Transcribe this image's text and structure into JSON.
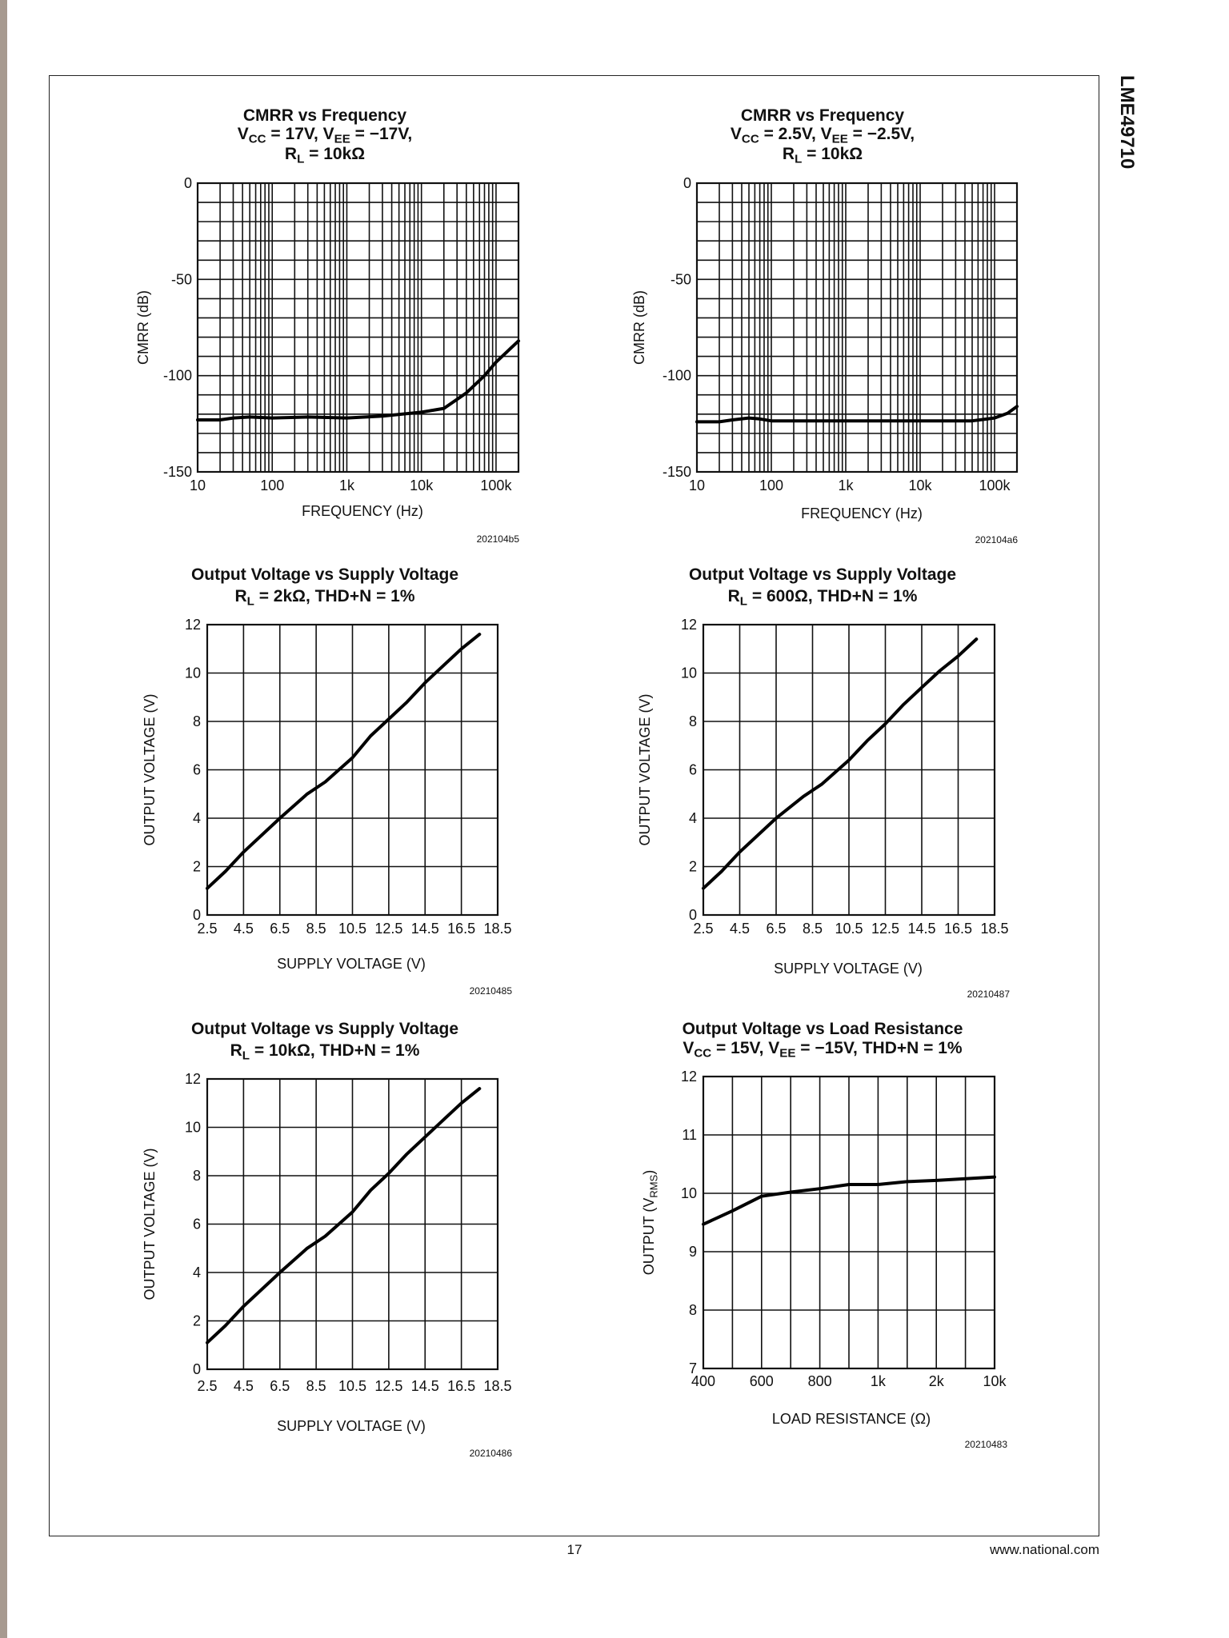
{
  "page": {
    "side_title": "LME49710",
    "page_number": "17",
    "website": "www.national.com"
  },
  "chart_data": [
    {
      "type": "line",
      "title_lines": [
        [
          [
            "CMRR vs Frequency",
            0
          ]
        ],
        [
          [
            "V",
            0
          ],
          [
            "CC",
            1
          ],
          [
            " = 17V, V",
            0
          ],
          [
            "EE",
            1
          ],
          [
            " = −17V,",
            0
          ]
        ],
        [
          [
            "R",
            0
          ],
          [
            "L",
            1
          ],
          [
            " = 10kΩ",
            0
          ]
        ]
      ],
      "xlabel": [
        [
          "FREQUENCY (Hz)",
          0
        ]
      ],
      "ylabel": [
        [
          "CMRR (dB)",
          0
        ]
      ],
      "xscale": "log",
      "xlim": [
        10,
        200000
      ],
      "ylim": [
        -150,
        0
      ],
      "xticks": [
        10,
        100,
        1000,
        10000,
        100000
      ],
      "xtick_labels": [
        "10",
        "100",
        "1k",
        "10k",
        "100k"
      ],
      "yticks": [
        0,
        -50,
        -100,
        -150
      ],
      "ytick_labels": [
        "0",
        "-50",
        "-100",
        "-150"
      ],
      "xgrid": "log-minor",
      "ygrid_step": 10,
      "series": [
        {
          "name": "CMRR",
          "x": [
            10,
            20,
            30,
            50,
            100,
            300,
            1000,
            3000,
            10000,
            20000,
            40000,
            70000,
            100000,
            200000
          ],
          "y": [
            -123,
            -123,
            -122,
            -121.5,
            -122,
            -121.5,
            -122,
            -121,
            -119,
            -117,
            -109,
            -100,
            -93,
            -82
          ]
        }
      ],
      "figure_code": "202104b5"
    },
    {
      "type": "line",
      "title_lines": [
        [
          [
            "CMRR vs Frequency",
            0
          ]
        ],
        [
          [
            "V",
            0
          ],
          [
            "CC",
            1
          ],
          [
            " = 2.5V, V",
            0
          ],
          [
            "EE",
            1
          ],
          [
            " = −2.5V,",
            0
          ]
        ],
        [
          [
            "R",
            0
          ],
          [
            "L",
            1
          ],
          [
            " = 10kΩ",
            0
          ]
        ]
      ],
      "xlabel": [
        [
          "FREQUENCY (Hz)",
          0
        ]
      ],
      "ylabel": [
        [
          "CMRR (dB)",
          0
        ]
      ],
      "xscale": "log",
      "xlim": [
        10,
        200000
      ],
      "ylim": [
        -150,
        0
      ],
      "xticks": [
        10,
        100,
        1000,
        10000,
        100000
      ],
      "xtick_labels": [
        "10",
        "100",
        "1k",
        "10k",
        "100k"
      ],
      "yticks": [
        0,
        -50,
        -100,
        -150
      ],
      "ytick_labels": [
        "0",
        "-50",
        "-100",
        "-150"
      ],
      "xgrid": "log-minor",
      "ygrid_step": 10,
      "series": [
        {
          "name": "CMRR",
          "x": [
            10,
            20,
            30,
            50,
            70,
            100,
            1000,
            10000,
            50000,
            100000,
            150000,
            200000
          ],
          "y": [
            -124,
            -124,
            -123,
            -122,
            -122.5,
            -123.5,
            -123.5,
            -123.5,
            -123.5,
            -122,
            -119.5,
            -116
          ]
        }
      ],
      "figure_code": "202104a6"
    },
    {
      "type": "line",
      "title_lines": [
        [
          [
            "Output Voltage vs Supply Voltage",
            0
          ]
        ],
        [
          [
            "R",
            0
          ],
          [
            "L",
            1
          ],
          [
            " = 2kΩ, THD+N = 1%",
            0
          ]
        ]
      ],
      "xlabel": [
        [
          "SUPPLY VOLTAGE (V)",
          0
        ]
      ],
      "ylabel": [
        [
          "OUTPUT VOLTAGE (V)",
          0
        ]
      ],
      "xscale": "linear",
      "xlim": [
        2.5,
        18.5
      ],
      "ylim": [
        0,
        12
      ],
      "xticks": [
        2.5,
        4.5,
        6.5,
        8.5,
        10.5,
        12.5,
        14.5,
        16.5,
        18.5
      ],
      "xtick_labels": [
        "2.5",
        "4.5",
        "6.5",
        "8.5",
        "10.5",
        "12.5",
        "14.5",
        "16.5",
        "18.5"
      ],
      "yticks": [
        0,
        2,
        4,
        6,
        8,
        10,
        12
      ],
      "ytick_labels": [
        "0",
        "2",
        "4",
        "6",
        "8",
        "10",
        "12"
      ],
      "xgrid_step": 2,
      "ygrid_step": 2,
      "series": [
        {
          "name": "VOUT",
          "x": [
            2.5,
            3.5,
            4.5,
            6.5,
            8,
            9,
            10.5,
            11.5,
            12.5,
            13.5,
            14.5,
            15.5,
            16.5,
            17.5
          ],
          "y": [
            1.1,
            1.8,
            2.6,
            4.0,
            5.0,
            5.5,
            6.5,
            7.4,
            8.1,
            8.8,
            9.6,
            10.3,
            11.0,
            11.6
          ]
        }
      ],
      "figure_code": "20210485"
    },
    {
      "type": "line",
      "title_lines": [
        [
          [
            "Output Voltage vs Supply Voltage",
            0
          ]
        ],
        [
          [
            "R",
            0
          ],
          [
            "L",
            1
          ],
          [
            " = 600Ω, THD+N = 1%",
            0
          ]
        ]
      ],
      "xlabel": [
        [
          "SUPPLY VOLTAGE (V)",
          0
        ]
      ],
      "ylabel": [
        [
          "OUTPUT VOLTAGE (V)",
          0
        ]
      ],
      "xscale": "linear",
      "xlim": [
        2.5,
        18.5
      ],
      "ylim": [
        0,
        12
      ],
      "xticks": [
        2.5,
        4.5,
        6.5,
        8.5,
        10.5,
        12.5,
        14.5,
        16.5,
        18.5
      ],
      "xtick_labels": [
        "2.5",
        "4.5",
        "6.5",
        "8.5",
        "10.5",
        "12.5",
        "14.5",
        "16.5",
        "18.5"
      ],
      "yticks": [
        0,
        2,
        4,
        6,
        8,
        10,
        12
      ],
      "ytick_labels": [
        "0",
        "2",
        "4",
        "6",
        "8",
        "10",
        "12"
      ],
      "xgrid_step": 2,
      "ygrid_step": 2,
      "series": [
        {
          "name": "VOUT",
          "x": [
            2.5,
            3.5,
            4.5,
            6.5,
            8,
            9,
            10.5,
            11.5,
            12.5,
            13.5,
            14.5,
            15.5,
            16.5,
            17.5
          ],
          "y": [
            1.1,
            1.8,
            2.6,
            4.0,
            4.9,
            5.4,
            6.4,
            7.2,
            7.9,
            8.7,
            9.4,
            10.1,
            10.7,
            11.4
          ]
        }
      ],
      "figure_code": "20210487"
    },
    {
      "type": "line",
      "title_lines": [
        [
          [
            "Output Voltage vs Supply Voltage",
            0
          ]
        ],
        [
          [
            "R",
            0
          ],
          [
            "L",
            1
          ],
          [
            " = 10kΩ, THD+N = 1%",
            0
          ]
        ]
      ],
      "xlabel": [
        [
          "SUPPLY VOLTAGE (V)",
          0
        ]
      ],
      "ylabel": [
        [
          "OUTPUT VOLTAGE (V)",
          0
        ]
      ],
      "xscale": "linear",
      "xlim": [
        2.5,
        18.5
      ],
      "ylim": [
        0,
        12
      ],
      "xticks": [
        2.5,
        4.5,
        6.5,
        8.5,
        10.5,
        12.5,
        14.5,
        16.5,
        18.5
      ],
      "xtick_labels": [
        "2.5",
        "4.5",
        "6.5",
        "8.5",
        "10.5",
        "12.5",
        "14.5",
        "16.5",
        "18.5"
      ],
      "yticks": [
        0,
        2,
        4,
        6,
        8,
        10,
        12
      ],
      "ytick_labels": [
        "0",
        "2",
        "4",
        "6",
        "8",
        "10",
        "12"
      ],
      "xgrid_step": 2,
      "ygrid_step": 2,
      "series": [
        {
          "name": "VOUT",
          "x": [
            2.5,
            3.5,
            4.5,
            6.5,
            8,
            9,
            10.5,
            11.5,
            12.5,
            13.5,
            14.5,
            15.5,
            16.5,
            17.5
          ],
          "y": [
            1.1,
            1.8,
            2.6,
            4.0,
            5.0,
            5.5,
            6.5,
            7.4,
            8.1,
            8.9,
            9.6,
            10.3,
            11.0,
            11.6
          ]
        }
      ],
      "figure_code": "20210486"
    },
    {
      "type": "line",
      "title_lines": [
        [
          [
            "Output Voltage vs Load Resistance",
            0
          ]
        ],
        [
          [
            "V",
            0
          ],
          [
            "CC",
            1
          ],
          [
            " = 15V, V",
            0
          ],
          [
            "EE",
            1
          ],
          [
            " = −15V, THD+N = 1%",
            0
          ]
        ]
      ],
      "xlabel": [
        [
          "LOAD RESISTANCE (Ω)",
          0
        ]
      ],
      "ylabel": [
        [
          "OUTPUT (V",
          0
        ],
        [
          "RMS",
          1
        ],
        [
          ")",
          0
        ]
      ],
      "xscale": "category",
      "xlim": [
        0,
        10
      ],
      "ylim": [
        7,
        12
      ],
      "xticks": [
        0,
        2,
        4,
        6,
        8,
        10
      ],
      "xtick_labels": [
        "400",
        "600",
        "800",
        "1k",
        "2k",
        "10k"
      ],
      "yticks": [
        7,
        8,
        9,
        10,
        11,
        12
      ],
      "ytick_labels": [
        "7",
        "8",
        "9",
        "10",
        "11",
        "12"
      ],
      "xgrid_step": 1,
      "ygrid_step": 1,
      "series": [
        {
          "name": "VOUT",
          "x": [
            0,
            1,
            2,
            3,
            4,
            5,
            6,
            7,
            8,
            9,
            10
          ],
          "y": [
            9.47,
            9.7,
            9.95,
            10.02,
            10.08,
            10.15,
            10.15,
            10.2,
            10.22,
            10.25,
            10.28
          ]
        }
      ],
      "figure_code": "20210483"
    }
  ]
}
